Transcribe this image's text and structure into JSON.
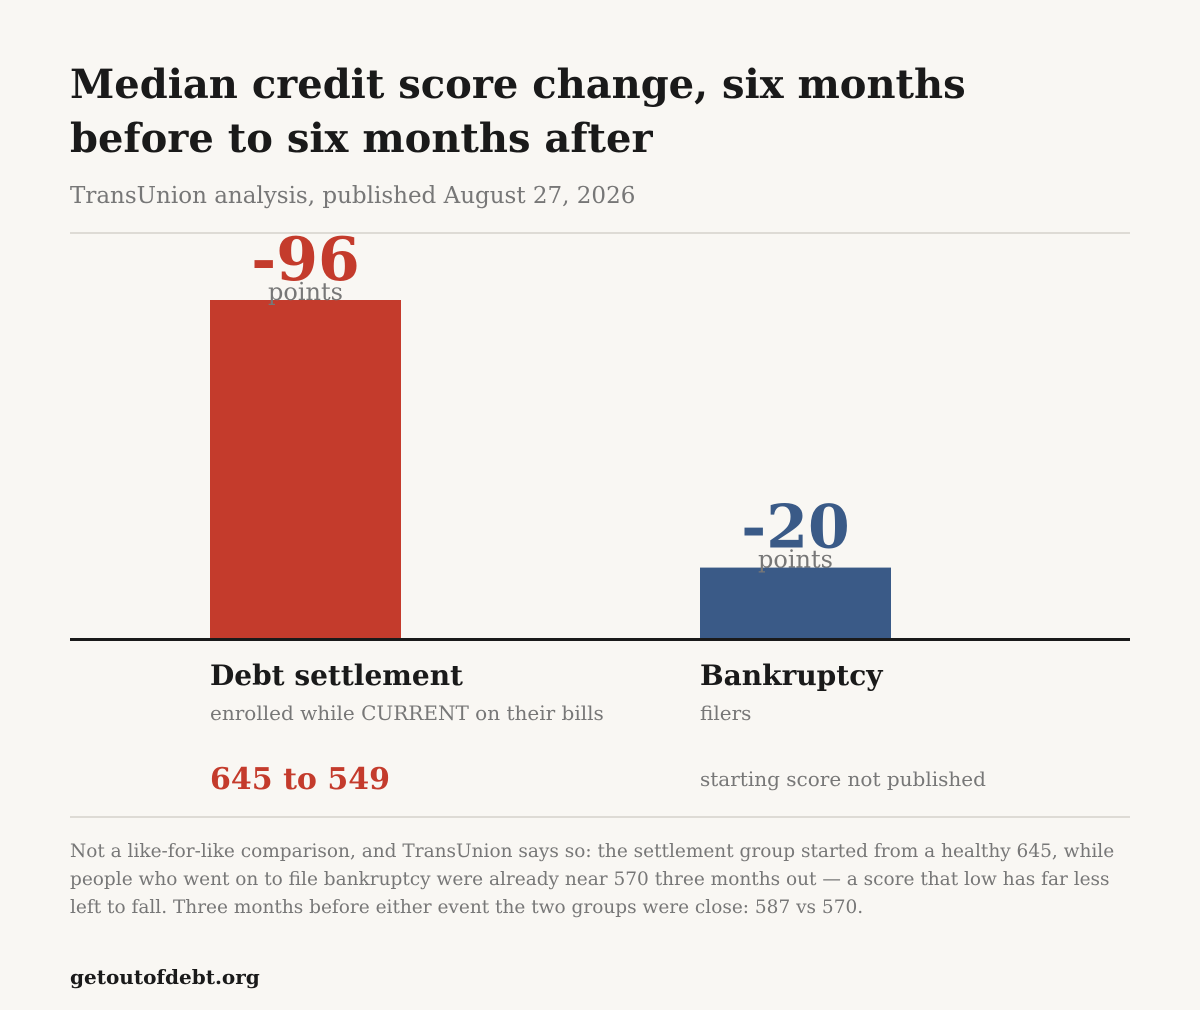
{
  "header": {
    "title": "Median credit score change, six months before to six months after",
    "subtitle": "TransUnion analysis, published August 27, 2026"
  },
  "colors": {
    "settlement": "#c43b2c",
    "bankruptcy": "#3a5a87",
    "value_unit": "#777777",
    "background": "#f9f7f3"
  },
  "chart_data": {
    "type": "bar",
    "categories": [
      "Debt settlement",
      "Bankruptcy"
    ],
    "values": [
      -96,
      -20
    ],
    "value_labels": [
      "-96",
      "-20"
    ],
    "value_unit_label": "points",
    "ylim": [
      0,
      -96
    ],
    "grid": false,
    "legend": "none",
    "title": "Median credit score change, six months before to six months after",
    "xlabel": "",
    "ylabel": ""
  },
  "categories": [
    {
      "name": "Debt settlement",
      "description": "enrolled while CURRENT on their bills",
      "score_range": "645 to 549"
    },
    {
      "name": "Bankruptcy",
      "description": "filers",
      "score_note": "starting score not published"
    }
  ],
  "footnote": "Not a like-for-like comparison, and TransUnion says so: the settlement group started from a healthy 645, while people who went on to file bankruptcy were already near 570 three months out — a score that low has far less left to fall. Three months before either event the two groups were close: 587 vs 570.",
  "source": "getoutofdebt.org"
}
